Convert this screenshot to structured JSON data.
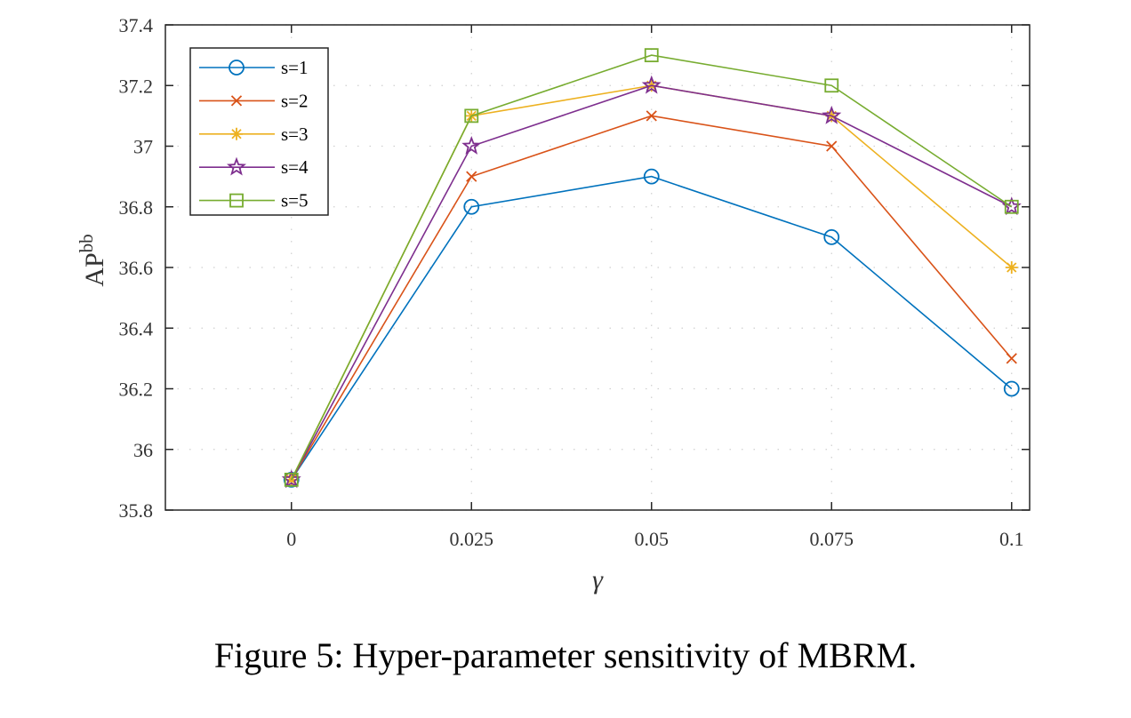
{
  "caption": "Figure 5: Hyper-parameter sensitivity of MBRM.",
  "chart_data": {
    "type": "line",
    "title": "",
    "xlabel": "γ",
    "ylabel_main": "AP",
    "ylabel_sup": "bb",
    "x": [
      0,
      0.025,
      0.05,
      0.075,
      0.1
    ],
    "x_tick_labels": [
      "0",
      "0.025",
      "0.05",
      "0.075",
      "0.1"
    ],
    "y_ticks": [
      35.8,
      36,
      36.2,
      36.4,
      36.6,
      36.8,
      37,
      37.2,
      37.4
    ],
    "y_tick_labels": [
      "35.8",
      "36",
      "36.2",
      "36.4",
      "36.6",
      "36.8",
      "37",
      "37.2",
      "37.4"
    ],
    "xlim": [
      -0.0175,
      0.1025
    ],
    "ylim": [
      35.8,
      37.4
    ],
    "grid": "dotted",
    "legend_position": "top-left",
    "series": [
      {
        "name": "s=1",
        "color": "#0072BD",
        "marker": "circle",
        "values": [
          35.9,
          36.8,
          36.9,
          36.7,
          36.2
        ]
      },
      {
        "name": "s=2",
        "color": "#D95319",
        "marker": "x",
        "values": [
          35.9,
          36.9,
          37.1,
          37.0,
          36.3
        ]
      },
      {
        "name": "s=3",
        "color": "#EDB120",
        "marker": "asterisk",
        "values": [
          35.9,
          37.1,
          37.2,
          37.1,
          36.6
        ]
      },
      {
        "name": "s=4",
        "color": "#7E2F8E",
        "marker": "star",
        "values": [
          35.9,
          37.0,
          37.2,
          37.1,
          36.8
        ]
      },
      {
        "name": "s=5",
        "color": "#77AC30",
        "marker": "square",
        "values": [
          35.9,
          37.1,
          37.3,
          37.2,
          36.8
        ]
      }
    ]
  }
}
